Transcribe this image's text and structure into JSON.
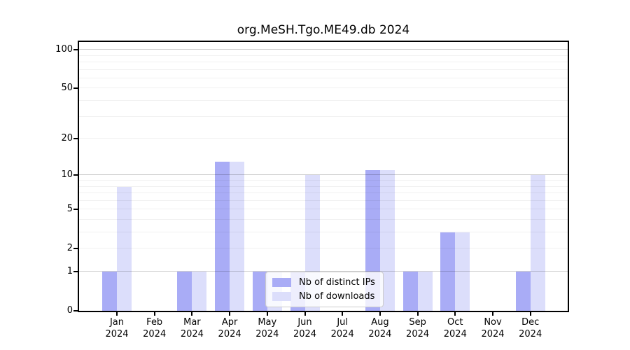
{
  "title": "org.MeSH.Tgo.ME49.db 2024",
  "chart_data": {
    "type": "bar",
    "title": "org.MeSH.Tgo.ME49.db 2024",
    "categories": [
      "Jan",
      "Feb",
      "Mar",
      "Apr",
      "May",
      "Jun",
      "Jul",
      "Aug",
      "Sep",
      "Oct",
      "Nov",
      "Dec"
    ],
    "category_year": "2024",
    "series": [
      {
        "name": "Nb of distinct IPs",
        "color": "#a9acf6",
        "values": [
          1,
          0,
          1,
          13,
          1,
          1,
          0,
          11,
          1,
          3,
          0,
          1
        ]
      },
      {
        "name": "Nb of downloads",
        "color": "#dcdefb",
        "values": [
          8,
          0,
          1,
          13,
          1,
          10,
          0,
          11,
          1,
          3,
          0,
          10
        ]
      }
    ],
    "y_scale": "log10(1+x)",
    "y_ticks": [
      0,
      1,
      2,
      5,
      10,
      20,
      50,
      100
    ],
    "y_gridlines_major": [
      1,
      10,
      100
    ],
    "y_gridlines_minor": [
      2,
      3,
      4,
      5,
      6,
      7,
      8,
      9,
      20,
      30,
      40,
      50,
      60,
      70,
      80,
      90
    ],
    "ylim": [
      0,
      110
    ],
    "grid": "on",
    "legend_position": "inside-bottom-center",
    "xlabel": "",
    "ylabel": ""
  },
  "colors": {
    "distinct_ips_bar": "#a9acf6",
    "downloads_bar": "#dcdefb",
    "axis": "#000000",
    "gridline_major": "#c9c9c9",
    "gridline_minor": "#f0f0f0",
    "legend_border": "#cccccc",
    "background": "#ffffff"
  },
  "legend": {
    "items": [
      {
        "label": "Nb of distinct IPs"
      },
      {
        "label": "Nb of downloads"
      }
    ]
  }
}
